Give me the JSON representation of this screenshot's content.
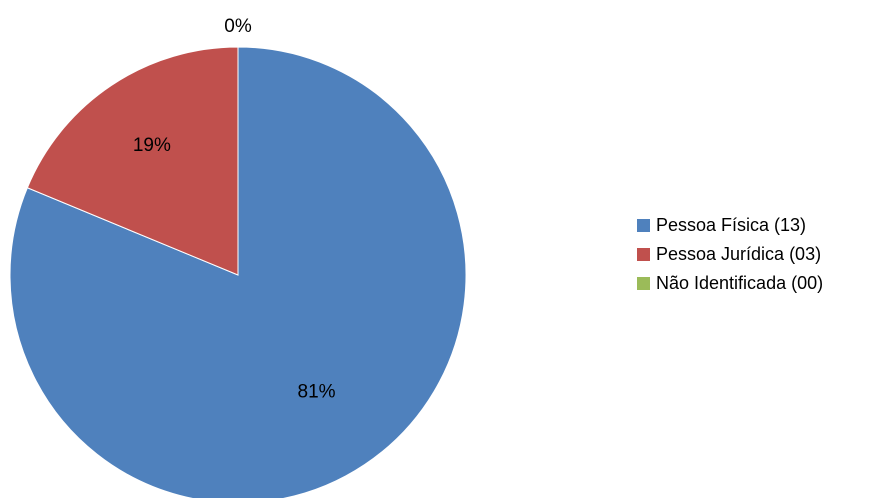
{
  "chart_data": {
    "type": "pie",
    "categories": [
      "Pessoa Física (13)",
      "Pessoa Jurídica (03)",
      "Não Identificada (00)"
    ],
    "values": [
      13,
      3,
      0
    ],
    "data_labels": [
      "81%",
      "19%",
      "0%"
    ],
    "colors": [
      "#4f81bd",
      "#c0504d",
      "#9bbb59"
    ],
    "start": "12 o'clock",
    "direction": "clockwise",
    "legend_position": "right"
  }
}
